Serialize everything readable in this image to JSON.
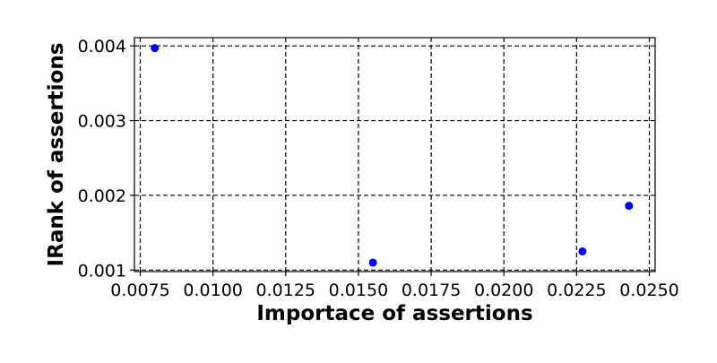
{
  "chart_data": {
    "type": "scatter",
    "title": "",
    "xlabel": "Importace of assertions",
    "ylabel": "IRank of assertions",
    "xlim": [
      0.0073,
      0.0252
    ],
    "ylim": [
      0.00098,
      0.00411
    ],
    "x_ticks": [
      0.0075,
      0.01,
      0.0125,
      0.015,
      0.0175,
      0.02,
      0.0225,
      0.025
    ],
    "x_tick_labels": [
      "0.0075",
      "0.0100",
      "0.0125",
      "0.0150",
      "0.0175",
      "0.0200",
      "0.0225",
      "0.0250"
    ],
    "y_ticks": [
      0.001,
      0.002,
      0.003,
      0.004
    ],
    "y_tick_labels": [
      "0.001",
      "0.002",
      "0.003",
      "0.004"
    ],
    "grid": true,
    "marker_color": "#0000ff",
    "points": [
      {
        "x": 0.008,
        "y": 0.00397
      },
      {
        "x": 0.0155,
        "y": 0.0011
      },
      {
        "x": 0.0227,
        "y": 0.00125
      },
      {
        "x": 0.0243,
        "y": 0.00186
      }
    ]
  }
}
